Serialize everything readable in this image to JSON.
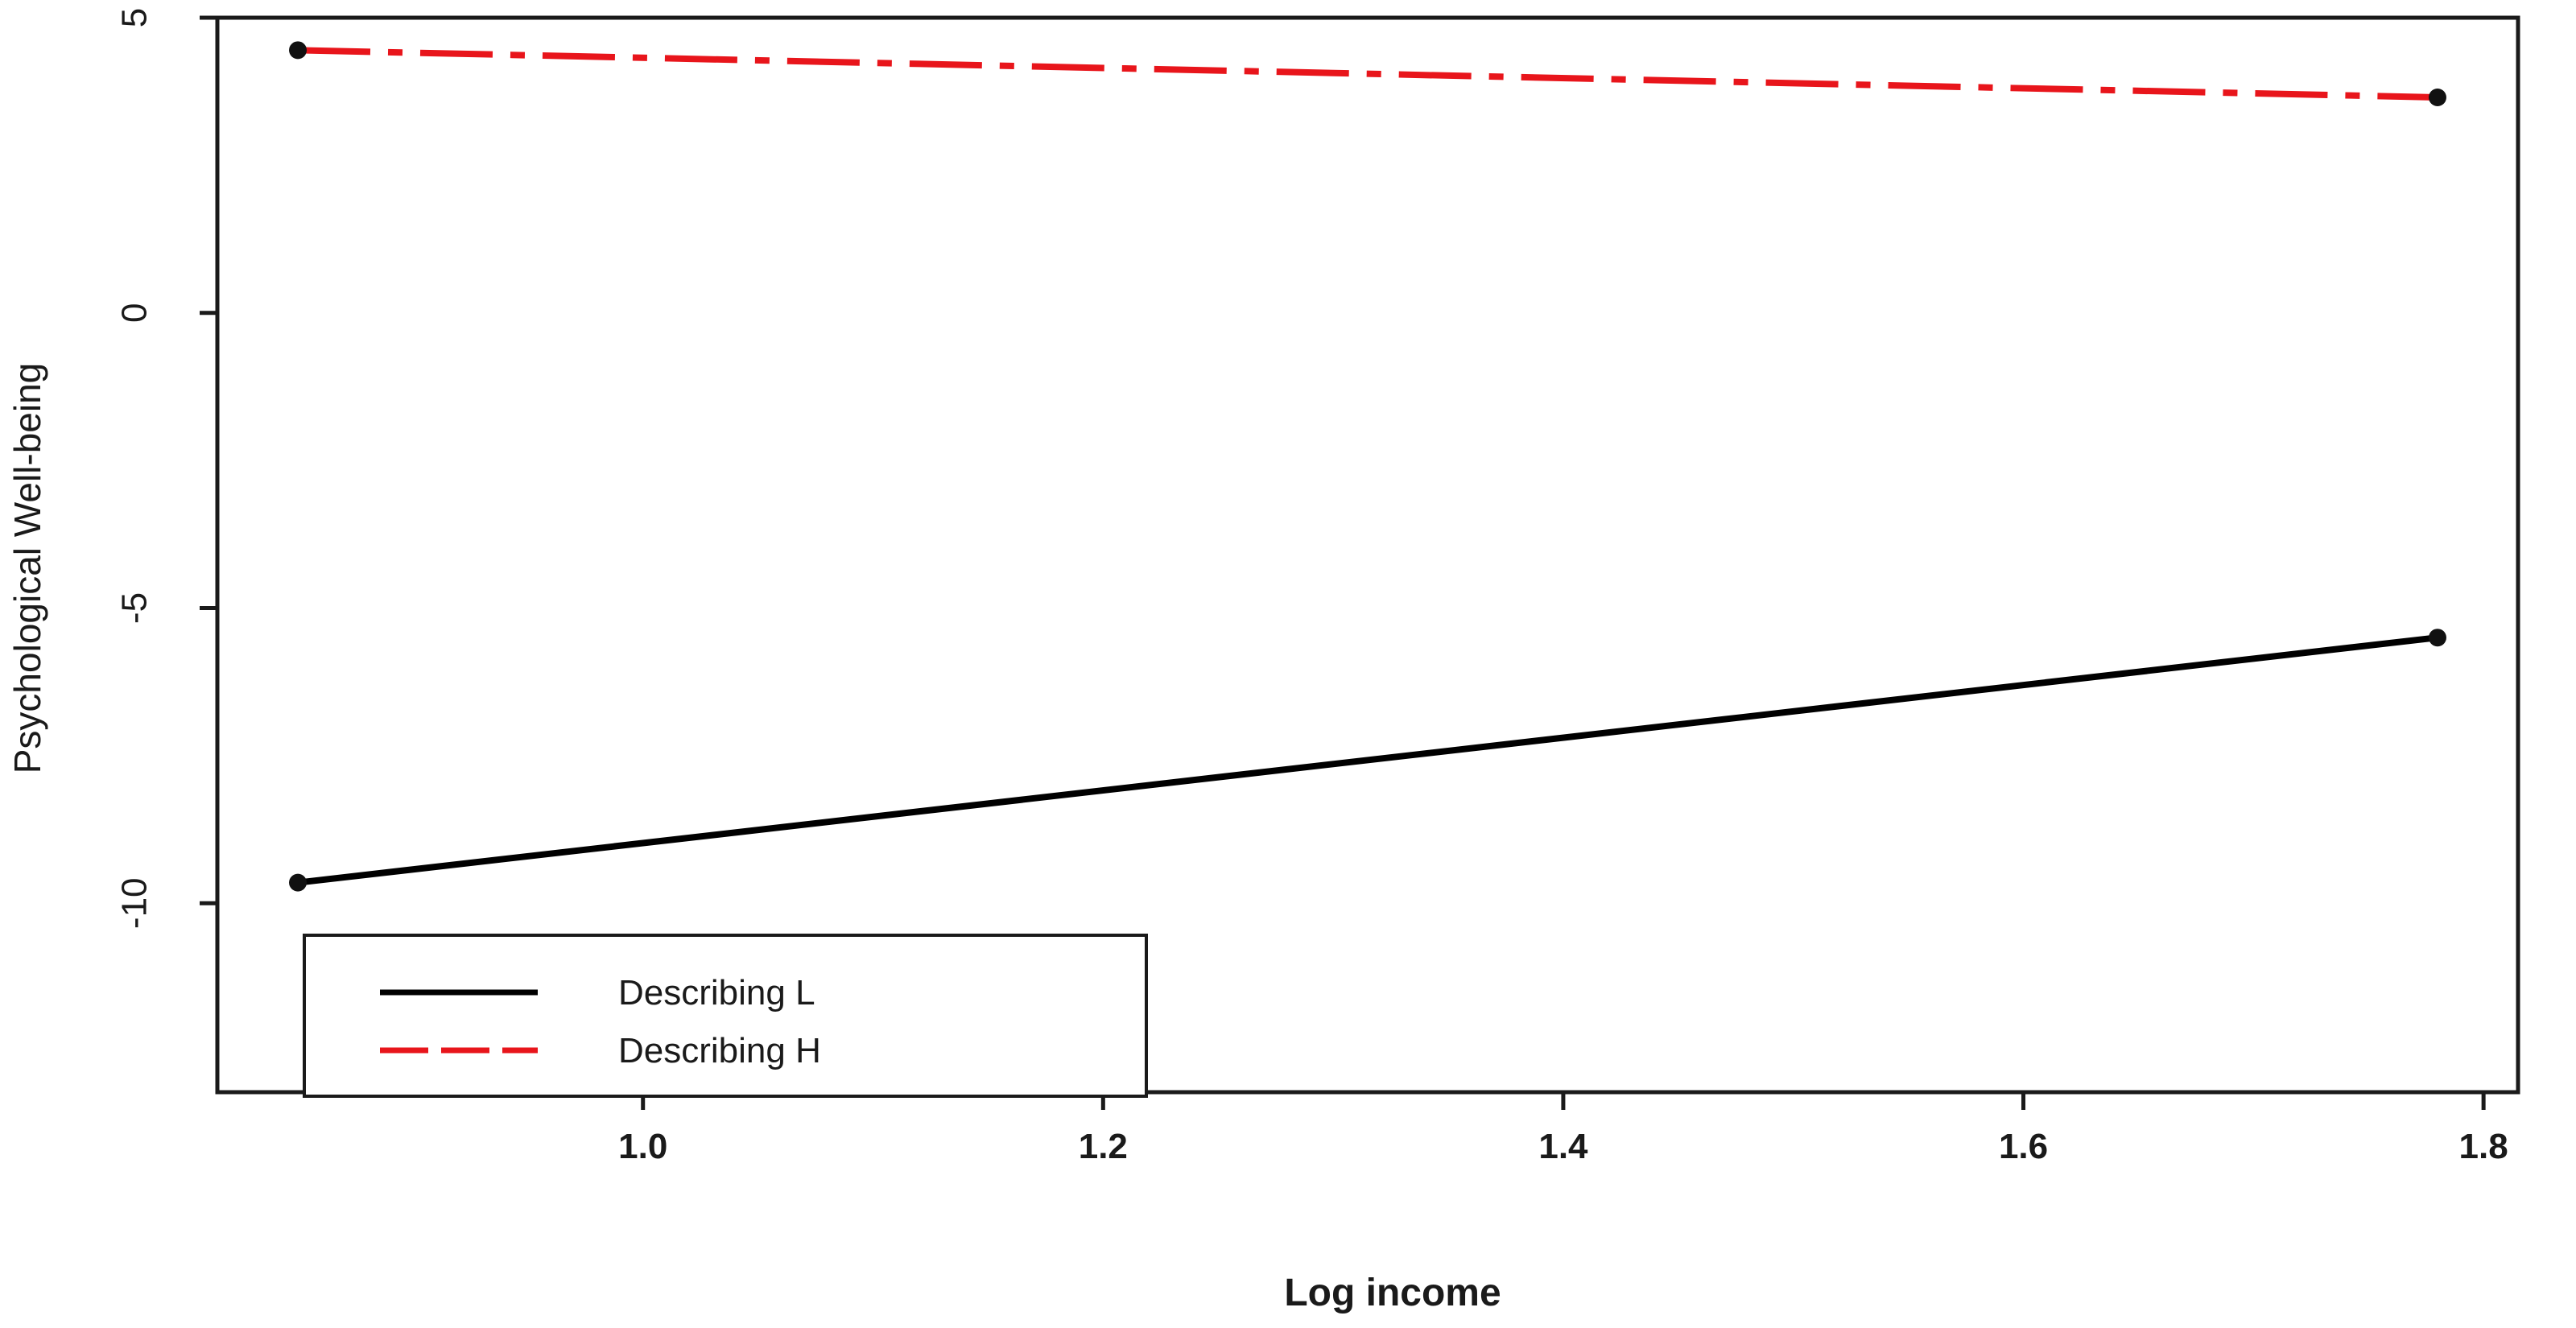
{
  "chart_data": {
    "type": "line",
    "title": "",
    "xlabel": "Log income",
    "ylabel": "Psychological Well-being",
    "xlim": [
      0.815,
      1.815
    ],
    "ylim": [
      -13.2,
      5.0
    ],
    "x_ticks": [
      1.0,
      1.2,
      1.4,
      1.6,
      1.8
    ],
    "x_tick_labels": [
      "1.0",
      "1.2",
      "1.4",
      "1.6",
      "1.8"
    ],
    "y_ticks": [
      5,
      0,
      -5,
      -10
    ],
    "y_tick_labels": [
      "5",
      "0",
      "-5",
      "-10"
    ],
    "grid": false,
    "legend_position": "bottom-left",
    "series": [
      {
        "name": "Describing L",
        "color": "#000000",
        "style": "solid",
        "x": [
          0.85,
          1.78
        ],
        "y": [
          -9.65,
          -5.5
        ]
      },
      {
        "name": "Describing H",
        "color": "#e8151b",
        "style": "dashed",
        "x": [
          0.85,
          1.78
        ],
        "y": [
          4.45,
          3.65
        ]
      }
    ]
  }
}
